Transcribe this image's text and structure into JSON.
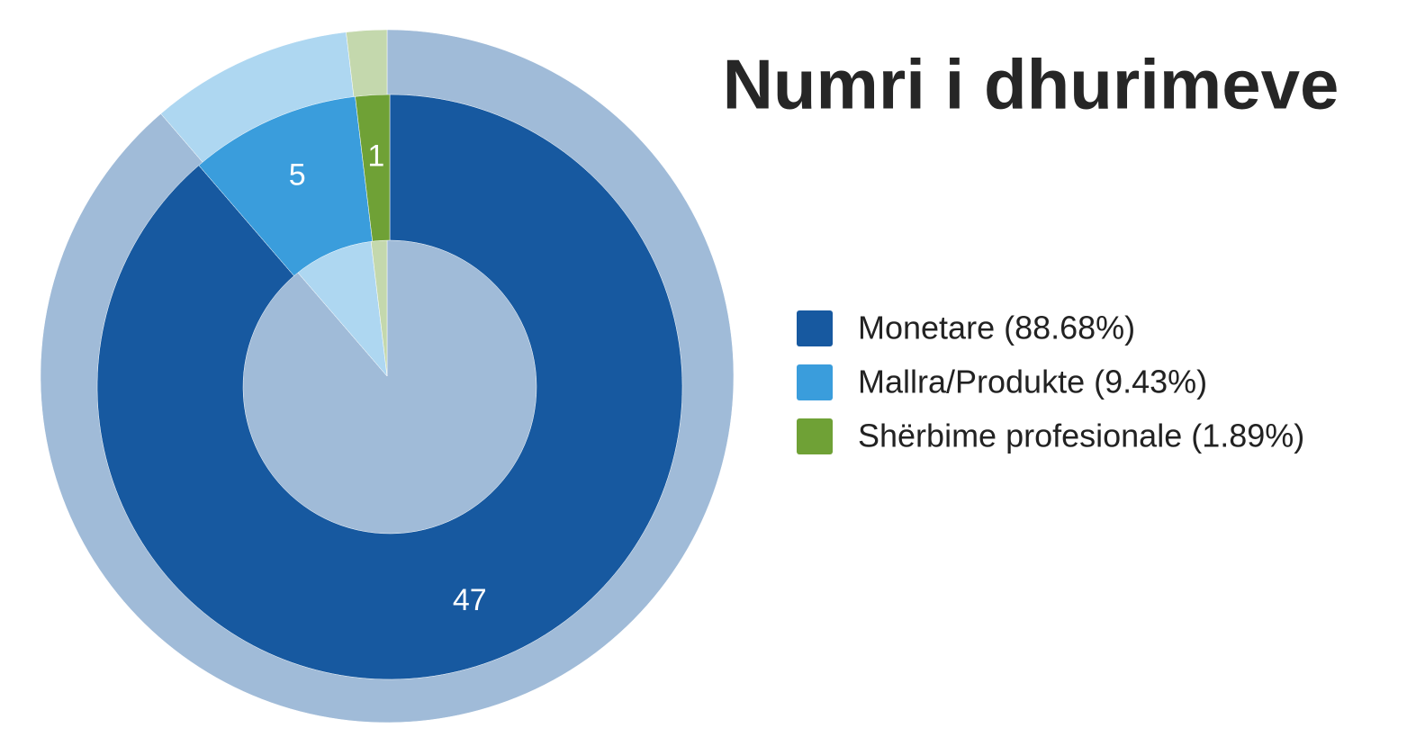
{
  "chart_data": {
    "type": "donut",
    "title": "Numri i dhurimeve",
    "categories": [
      "Monetare (88.68%)",
      "Mallra/Produkte (9.43%)",
      "Shërbime profesionale (1.89%)"
    ],
    "values": [
      47,
      5,
      1
    ],
    "colors": [
      "#1759a0",
      "#3a9ddc",
      "#6fa136"
    ],
    "legend": "right"
  }
}
